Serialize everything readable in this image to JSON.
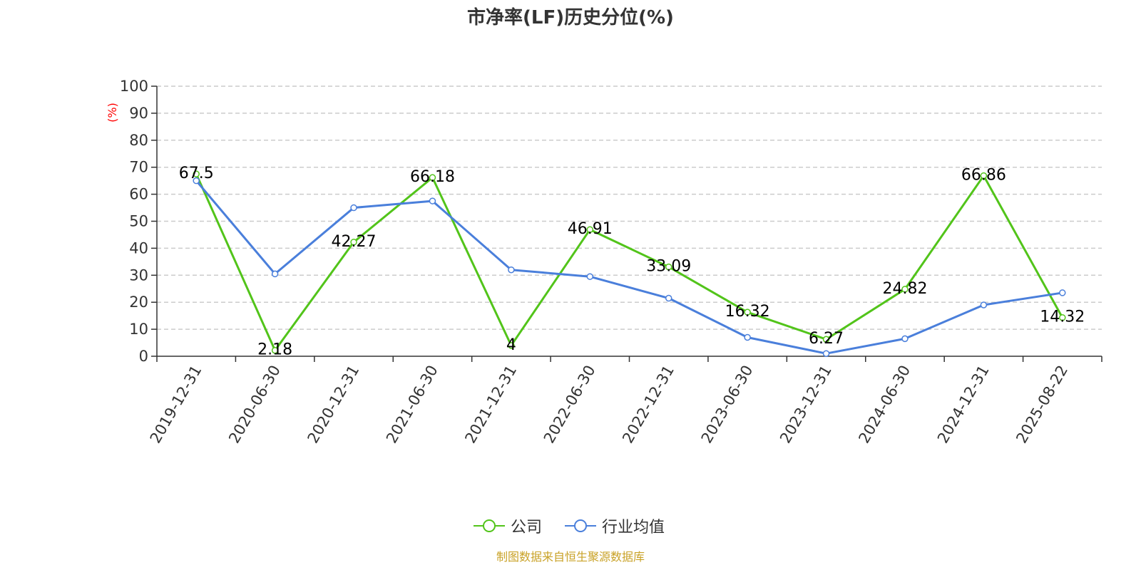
{
  "page": {
    "title": "市净率(LF)历史分位(%)",
    "footer": "制图数据来自恒生聚源数据库"
  },
  "chart_data": {
    "type": "line",
    "title": "市净率(LF)历史分位(%)",
    "ylabel": "(%)",
    "xlabel": "",
    "ylim": [
      0,
      100
    ],
    "yticks": [
      0,
      10,
      20,
      30,
      40,
      50,
      60,
      70,
      80,
      90,
      100
    ],
    "grid": true,
    "legend_position": "bottom-center",
    "categories": [
      "2019-12-31",
      "2020-06-30",
      "2020-12-31",
      "2021-06-30",
      "2021-12-31",
      "2022-06-30",
      "2022-12-31",
      "2023-06-30",
      "2023-12-31",
      "2024-06-30",
      "2024-12-31",
      "2025-08-22"
    ],
    "series": [
      {
        "name": "公司",
        "color": "#52c41a",
        "show_labels": true,
        "values": [
          67.5,
          2.18,
          42.27,
          66.18,
          4,
          46.91,
          33.09,
          16.32,
          6.27,
          24.82,
          66.86,
          14.32
        ]
      },
      {
        "name": "行业均值",
        "color": "#4a7fdb",
        "show_labels": false,
        "values": [
          65,
          30.5,
          55,
          57.5,
          32,
          29.5,
          21.5,
          7,
          1,
          6.5,
          19,
          23.5
        ]
      }
    ],
    "ylabel_color": "#ff0000"
  }
}
